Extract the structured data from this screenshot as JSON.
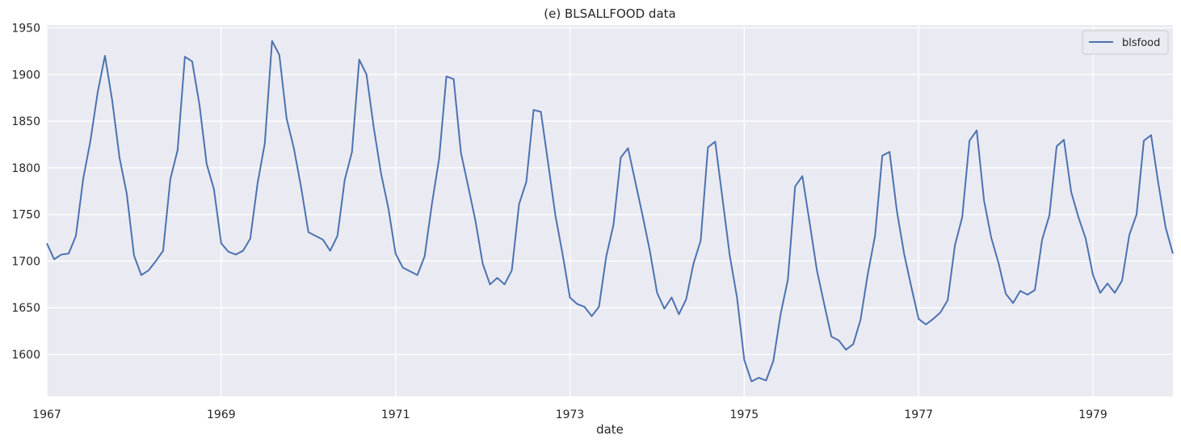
{
  "chart_data": {
    "type": "line",
    "title": "(e) BLSALLFOOD data",
    "xlabel": "date",
    "ylabel": "",
    "x_start": "1967-01",
    "x_end": "1979-12",
    "frequency": "monthly",
    "xlim": [
      1967.0,
      1979.917
    ],
    "ylim": [
      1555,
      1953
    ],
    "x_ticks": [
      1967,
      1969,
      1971,
      1973,
      1975,
      1977,
      1979
    ],
    "x_tick_labels": [
      "1967",
      "1969",
      "1971",
      "1973",
      "1975",
      "1977",
      "1979"
    ],
    "y_ticks": [
      1600,
      1650,
      1700,
      1750,
      1800,
      1850,
      1900,
      1950
    ],
    "y_tick_labels": [
      "1600",
      "1650",
      "1700",
      "1750",
      "1800",
      "1850",
      "1900",
      "1950"
    ],
    "grid": true,
    "legend_position": "top-right",
    "colors": {
      "line": "#4c72b0",
      "background": "#eaeaf2",
      "grid": "#ffffff"
    },
    "series": [
      {
        "name": "blsfood",
        "values": [
          1719,
          1702,
          1707,
          1708,
          1727,
          1788,
          1829,
          1881,
          1920,
          1872,
          1811,
          1772,
          1706,
          1685,
          1690,
          1700,
          1711,
          1788,
          1819,
          1919,
          1914,
          1868,
          1804,
          1777,
          1719,
          1710,
          1707,
          1711,
          1724,
          1783,
          1826,
          1936,
          1921,
          1853,
          1821,
          1779,
          1731,
          1727,
          1723,
          1711,
          1727,
          1787,
          1817,
          1916,
          1900,
          1843,
          1794,
          1757,
          1708,
          1693,
          1689,
          1685,
          1705,
          1761,
          1810,
          1898,
          1895,
          1816,
          1780,
          1743,
          1697,
          1675,
          1682,
          1675,
          1690,
          1761,
          1785,
          1862,
          1860,
          1805,
          1749,
          1707,
          1661,
          1654,
          1651,
          1641,
          1651,
          1705,
          1739,
          1811,
          1821,
          1785,
          1749,
          1711,
          1666,
          1649,
          1661,
          1643,
          1659,
          1697,
          1722,
          1822,
          1828,
          1767,
          1706,
          1661,
          1594,
          1571,
          1575,
          1572,
          1593,
          1643,
          1680,
          1780,
          1791,
          1741,
          1690,
          1654,
          1619,
          1615,
          1605,
          1611,
          1637,
          1686,
          1727,
          1813,
          1817,
          1754,
          1708,
          1672,
          1638,
          1632,
          1638,
          1645,
          1658,
          1717,
          1747,
          1829,
          1840,
          1765,
          1725,
          1698,
          1665,
          1655,
          1668,
          1664,
          1669,
          1723,
          1749,
          1823,
          1830,
          1774,
          1747,
          1724,
          1685,
          1666,
          1676,
          1666,
          1679,
          1728,
          1750,
          1829,
          1835,
          1783,
          1736,
          1708
        ]
      }
    ]
  }
}
